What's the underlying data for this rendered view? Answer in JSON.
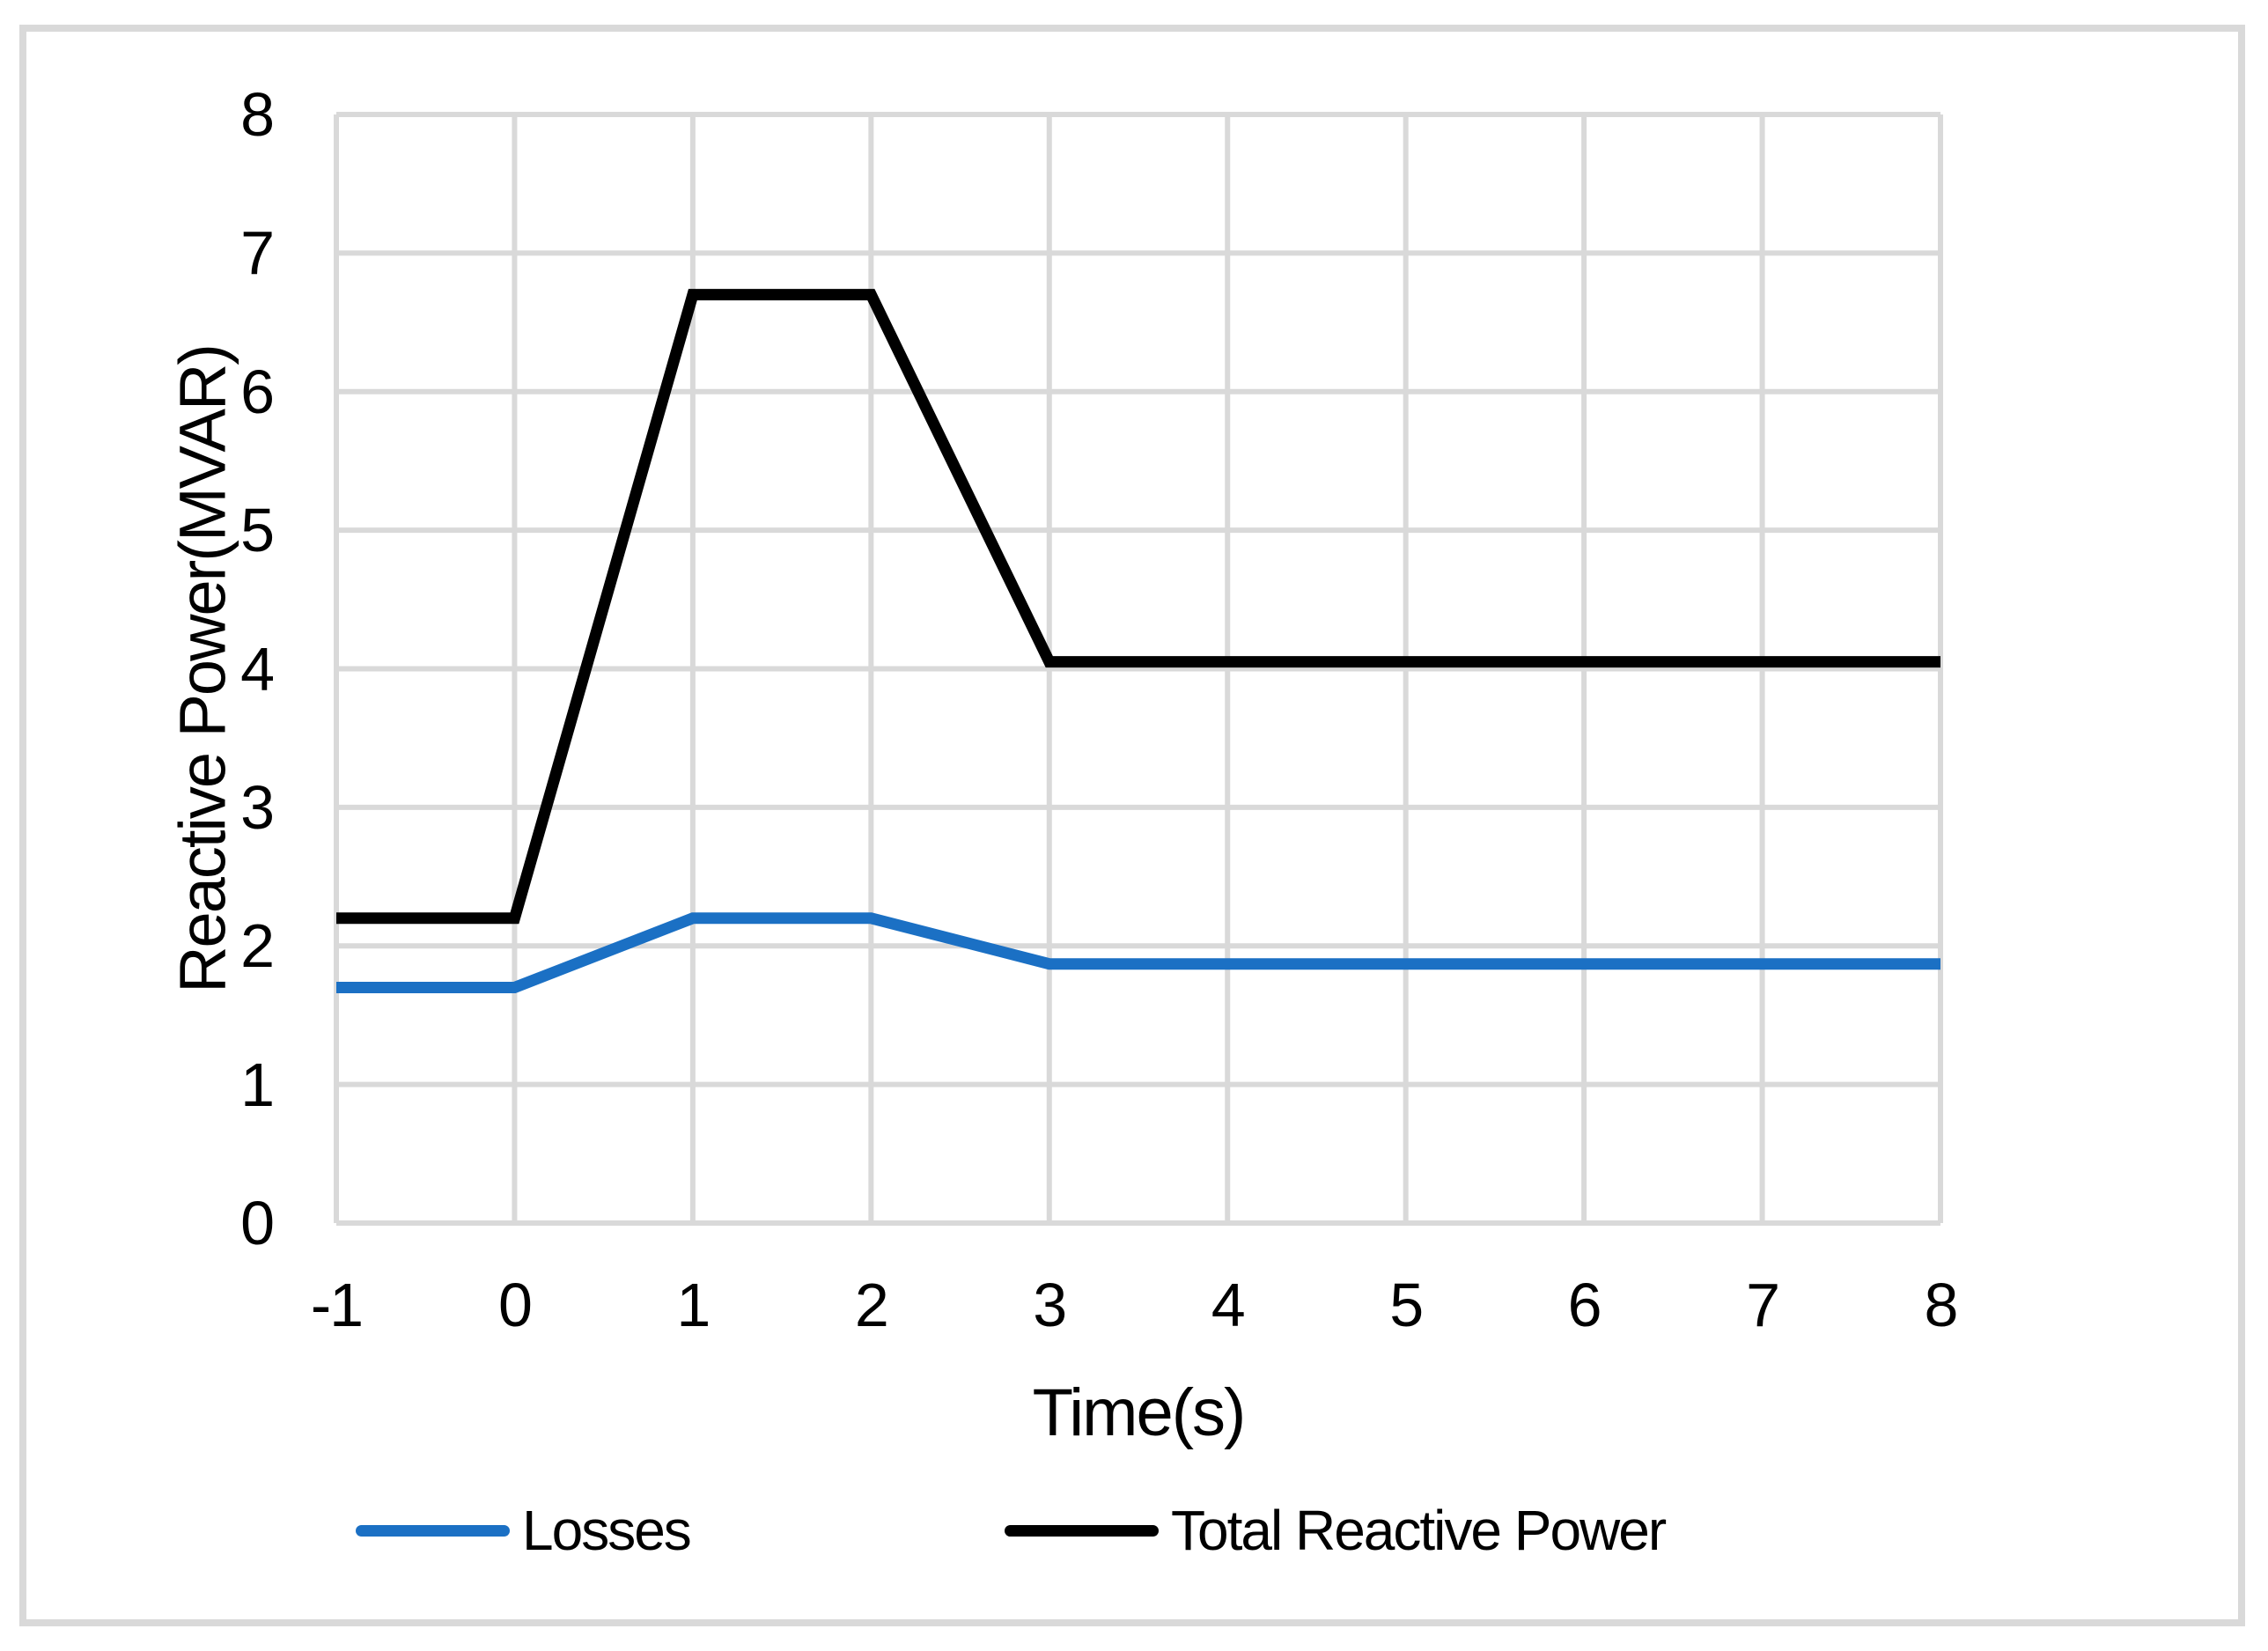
{
  "figure": {
    "background": "#ffffff",
    "frame_color": "#D9D9D9"
  },
  "chart_data": {
    "type": "line",
    "title": "",
    "x_axis": {
      "title": "Time(s)",
      "range": [
        -1,
        8
      ],
      "ticks": [
        -1,
        0,
        1,
        2,
        3,
        4,
        5,
        6,
        7,
        8
      ]
    },
    "y_axis": {
      "title": "Reactive Power(MVAR)",
      "range": [
        0,
        8
      ],
      "ticks": [
        0,
        1,
        2,
        3,
        4,
        5,
        6,
        7,
        8
      ]
    },
    "grid": true,
    "gridline_color": "#D9D9D9",
    "legend_position": "bottom",
    "series": [
      {
        "name": "Losses",
        "color": "#1B70C4",
        "points": [
          [
            -1,
            1.7
          ],
          [
            0,
            1.7
          ],
          [
            1,
            2.2
          ],
          [
            2,
            2.2
          ],
          [
            3,
            1.87
          ],
          [
            8,
            1.87
          ]
        ]
      },
      {
        "name": "Total Reactive Power",
        "color": "#000000",
        "points": [
          [
            -1,
            2.2
          ],
          [
            0,
            2.2
          ],
          [
            1,
            6.7
          ],
          [
            2,
            6.7
          ],
          [
            3,
            4.05
          ],
          [
            8,
            4.05
          ]
        ]
      }
    ]
  }
}
